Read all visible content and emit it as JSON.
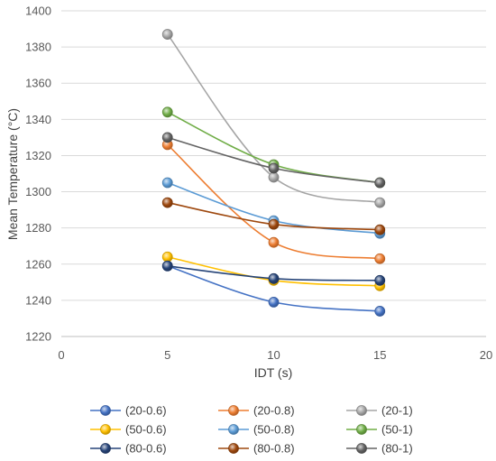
{
  "chart_data": {
    "type": "line",
    "title": "",
    "xlabel": "IDT (s)",
    "ylabel": "Mean Temperature (°C)",
    "xlim": [
      0,
      20
    ],
    "ylim": [
      1220,
      1400
    ],
    "xticks": [
      "0",
      "5",
      "10",
      "15",
      "20"
    ],
    "yticks": [
      "1220",
      "1240",
      "1260",
      "1280",
      "1300",
      "1320",
      "1340",
      "1360",
      "1380",
      "1400"
    ],
    "grid": "horizontal",
    "legend_position": "bottom",
    "x": [
      5,
      10,
      15
    ],
    "series": [
      {
        "name": "(20-0.6)",
        "color": "#4472C4",
        "values": [
          1259,
          1239,
          1234
        ]
      },
      {
        "name": "(20-0.8)",
        "color": "#ED7D31",
        "values": [
          1326,
          1272,
          1263
        ]
      },
      {
        "name": "(20-1)",
        "color": "#A5A5A5",
        "values": [
          1387,
          1308,
          1294
        ]
      },
      {
        "name": "(50-0.6)",
        "color": "#FFC000",
        "values": [
          1264,
          1251,
          1248
        ]
      },
      {
        "name": "(50-0.8)",
        "color": "#5B9BD5",
        "values": [
          1305,
          1284,
          1277
        ]
      },
      {
        "name": "(50-1)",
        "color": "#70AD47",
        "values": [
          1344,
          1315,
          1305
        ]
      },
      {
        "name": "(80-0.6)",
        "color": "#264478",
        "values": [
          1259,
          1252,
          1251
        ]
      },
      {
        "name": "(80-0.8)",
        "color": "#9E480E",
        "values": [
          1294,
          1282,
          1279
        ]
      },
      {
        "name": "(80-1)",
        "color": "#636363",
        "values": [
          1330,
          1313,
          1305
        ]
      }
    ]
  }
}
